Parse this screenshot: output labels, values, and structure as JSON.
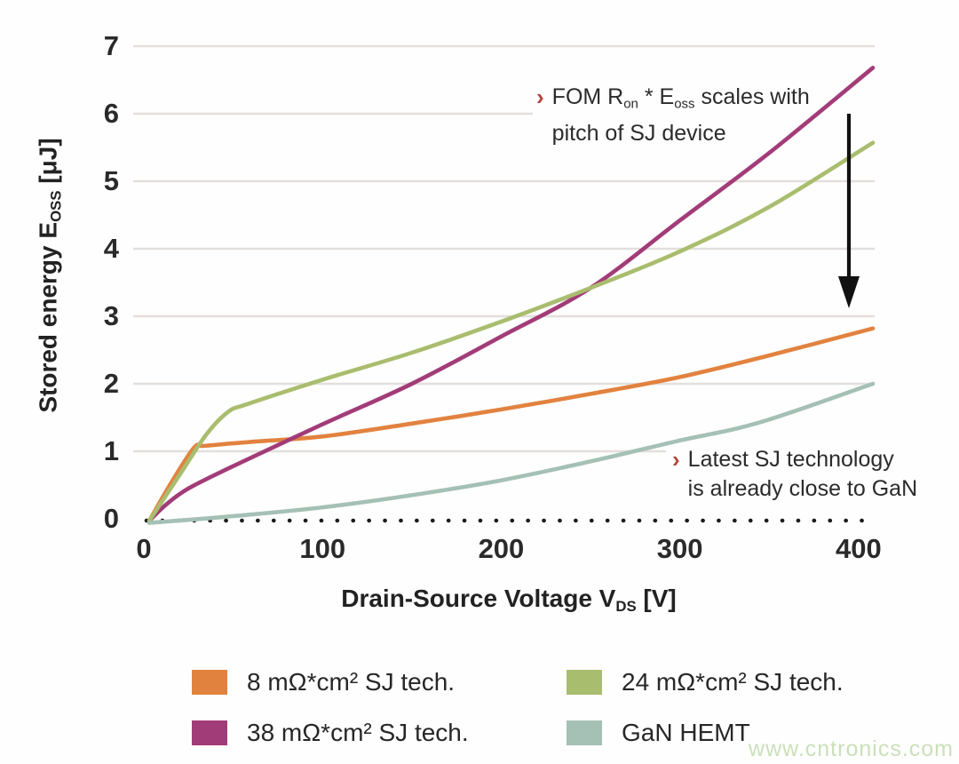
{
  "page": {
    "watermark": "www.cntronics.com",
    "watermark_color": "#cbe0ba",
    "background": "#fefefe"
  },
  "axes": {
    "y_title": {
      "pre": "Stored energy E",
      "sub": "OSS",
      "post": " [μJ]"
    },
    "x_title": {
      "pre": "Drain-Source Voltage V",
      "sub": "DS",
      "post": " [V]"
    }
  },
  "annotations": {
    "marker_color": "#b4453b",
    "fom": {
      "marker": "›",
      "l1a": "FOM R",
      "l1sub1": "on",
      "l1b": " * E",
      "l1sub2": "oss",
      "l1c": " scales with",
      "line2": "pitch of SJ device"
    },
    "gan": {
      "marker": "›",
      "line1": "Latest SJ technology",
      "line2": "is already close to GaN"
    }
  },
  "legend": {
    "items": [
      {
        "label": "8 mΩ*cm² SJ tech.",
        "color": "#E2823F"
      },
      {
        "label": "24 mΩ*cm² SJ tech.",
        "color": "#A9BD6E"
      },
      {
        "label": "38 mΩ*cm² SJ tech.",
        "color": "#A23C78"
      },
      {
        "label": "GaN HEMT",
        "color": "#A5C0B5"
      }
    ]
  },
  "chart_data": {
    "type": "line",
    "title": "",
    "xlabel": "Drain-Source Voltage V_DS [V]",
    "ylabel": "Stored energy E_OSS [μJ]",
    "xlim": [
      0,
      410
    ],
    "ylim": [
      0,
      7
    ],
    "xticks": [
      0,
      100,
      200,
      300,
      400
    ],
    "yticks": [
      0,
      1,
      2,
      3,
      4,
      5,
      6,
      7
    ],
    "grid": "horizontal",
    "zero_line": "dotted",
    "legend_position": "bottom",
    "series": [
      {
        "name": "8 mΩ*cm² SJ tech.",
        "color": "#E2823F",
        "points": [
          [
            3,
            -0.03
          ],
          [
            15,
            0.52
          ],
          [
            28,
            1.05
          ],
          [
            34,
            1.08
          ],
          [
            60,
            1.14
          ],
          [
            100,
            1.22
          ],
          [
            150,
            1.41
          ],
          [
            200,
            1.62
          ],
          [
            250,
            1.85
          ],
          [
            300,
            2.1
          ],
          [
            350,
            2.42
          ],
          [
            408,
            2.82
          ]
        ]
      },
      {
        "name": "24 mΩ*cm² SJ tech.",
        "color": "#A9BD6E",
        "points": [
          [
            3,
            -0.03
          ],
          [
            20,
            0.65
          ],
          [
            35,
            1.25
          ],
          [
            47,
            1.58
          ],
          [
            58,
            1.7
          ],
          [
            100,
            2.06
          ],
          [
            150,
            2.46
          ],
          [
            200,
            2.92
          ],
          [
            250,
            3.42
          ],
          [
            300,
            3.96
          ],
          [
            350,
            4.62
          ],
          [
            408,
            5.57
          ]
        ]
      },
      {
        "name": "38 mΩ*cm² SJ tech.",
        "color": "#A23C78",
        "points": [
          [
            3,
            -0.03
          ],
          [
            12,
            0.2
          ],
          [
            25,
            0.45
          ],
          [
            50,
            0.78
          ],
          [
            100,
            1.4
          ],
          [
            150,
            2.0
          ],
          [
            200,
            2.7
          ],
          [
            250,
            3.42
          ],
          [
            300,
            4.42
          ],
          [
            350,
            5.42
          ],
          [
            408,
            6.68
          ]
        ]
      },
      {
        "name": "GaN HEMT",
        "color": "#A5C0B5",
        "points": [
          [
            3,
            -0.06
          ],
          [
            50,
            0.04
          ],
          [
            100,
            0.17
          ],
          [
            150,
            0.35
          ],
          [
            200,
            0.57
          ],
          [
            250,
            0.85
          ],
          [
            300,
            1.16
          ],
          [
            345,
            1.43
          ],
          [
            408,
            2.0
          ]
        ]
      }
    ]
  }
}
